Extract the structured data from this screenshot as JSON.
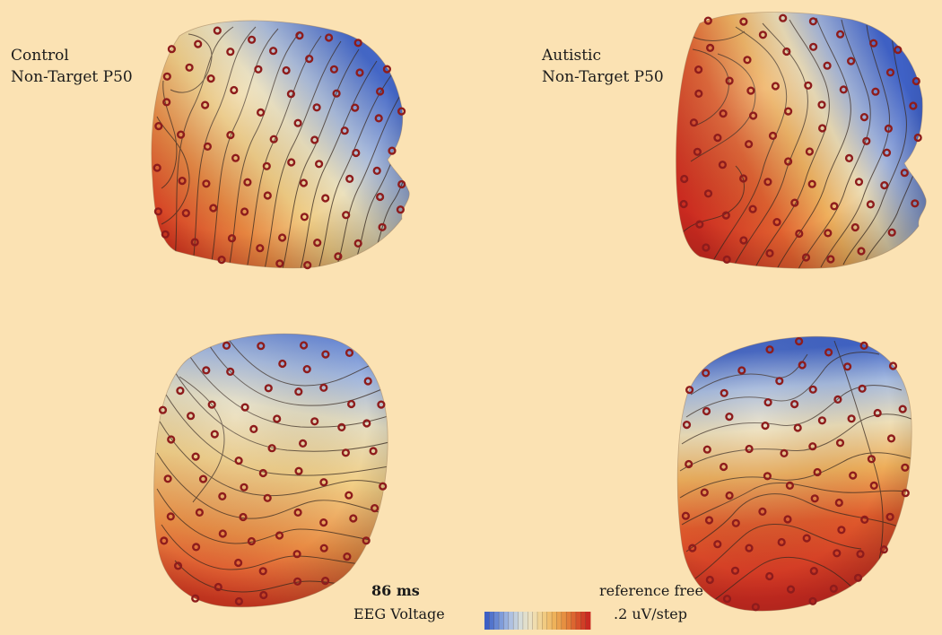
{
  "panels": {
    "control_label": {
      "line1": "Control",
      "line2": "Non-Target P50"
    },
    "autistic_label": {
      "line1": "Autistic",
      "line2": "Non-Target P50"
    }
  },
  "legend": {
    "time": "86 ms",
    "measure": "EEG Voltage",
    "reference": "reference free",
    "step": ".2 uV/step",
    "colors": [
      "#3d5fc4",
      "#6f8fd6",
      "#a8bde3",
      "#d6dcd8",
      "#efe2bd",
      "#f2cf87",
      "#eeb25a",
      "#e58a3d",
      "#d9582b",
      "#c92a22"
    ]
  },
  "style": {
    "background": "#fbe2b3",
    "electrode_color": "#8e1c1c",
    "contour_color": "#3a2a20"
  }
}
